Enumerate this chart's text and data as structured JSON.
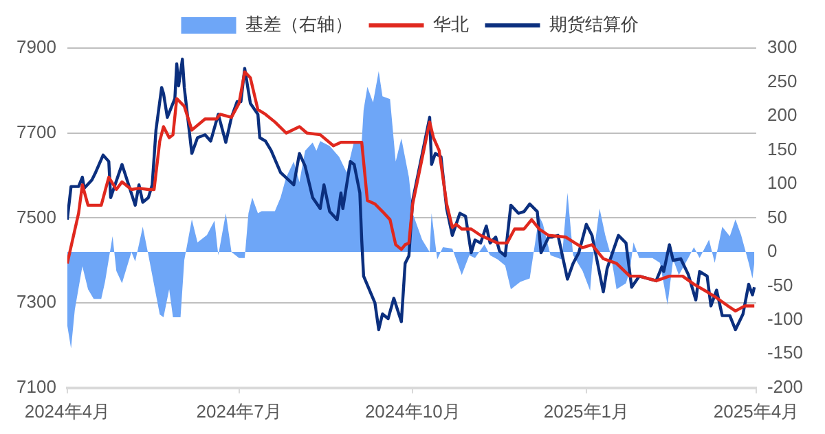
{
  "chart_data": {
    "type": "line",
    "legend": "top",
    "grid": "y",
    "marker": "none",
    "line_style": "solid",
    "xlim": [
      "2024-04-01",
      "2025-04-01"
    ],
    "xticks": [
      {
        "value": "2024-04-01",
        "label": "2024年4月"
      },
      {
        "value": "2024-07-01",
        "label": "2024年7月"
      },
      {
        "value": "2024-10-01",
        "label": "2024年10月"
      },
      {
        "value": "2025-01-01",
        "label": "2025年1月"
      },
      {
        "value": "2025-04-01",
        "label": "2025年4月"
      }
    ],
    "ylim": [
      7100,
      7900
    ],
    "yticks": [
      7100,
      7300,
      7500,
      7700,
      7900
    ],
    "y2lim": [
      -200,
      300
    ],
    "y2ticks": [
      -200,
      -150,
      -100,
      -50,
      0,
      50,
      100,
      150,
      200,
      250,
      300
    ],
    "series": [
      {
        "name": "基差（右轴）",
        "type": "area",
        "axis": "y2",
        "color": "#6ea6f7",
        "x": [
          "2024-04-01",
          "2024-04-03",
          "2024-04-05",
          "2024-04-09",
          "2024-04-12",
          "2024-04-15",
          "2024-04-19",
          "2024-04-21",
          "2024-04-25",
          "2024-04-27",
          "2024-04-30",
          "2024-05-05",
          "2024-05-07",
          "2024-05-11",
          "2024-05-14",
          "2024-05-20",
          "2024-05-22",
          "2024-05-25",
          "2024-05-27",
          "2024-05-31",
          "2024-06-02",
          "2024-06-06",
          "2024-06-09",
          "2024-06-14",
          "2024-06-18",
          "2024-06-20",
          "2024-06-24",
          "2024-06-27",
          "2024-07-01",
          "2024-07-04",
          "2024-07-06",
          "2024-07-08",
          "2024-07-11",
          "2024-07-13",
          "2024-07-20",
          "2024-07-23",
          "2024-07-26",
          "2024-07-30",
          "2024-08-02",
          "2024-08-05",
          "2024-08-09",
          "2024-08-11",
          "2024-08-13",
          "2024-08-18",
          "2024-08-23",
          "2024-08-27",
          "2024-08-31",
          "2024-09-04",
          "2024-09-05",
          "2024-09-07",
          "2024-09-10",
          "2024-09-13",
          "2024-09-15",
          "2024-09-19",
          "2024-09-22",
          "2024-09-25",
          "2024-09-29",
          "2024-10-01",
          "2024-10-06",
          "2024-10-10",
          "2024-10-11",
          "2024-10-14",
          "2024-10-17",
          "2024-10-22",
          "2024-10-27",
          "2024-10-31",
          "2024-11-03",
          "2024-11-08",
          "2024-11-11",
          "2024-11-15",
          "2024-11-19",
          "2024-11-22",
          "2024-11-27",
          "2024-12-02",
          "2024-12-07",
          "2024-12-09",
          "2024-12-13",
          "2024-12-19",
          "2024-12-22",
          "2024-12-25",
          "2024-12-30",
          "2025-01-03",
          "2025-01-04",
          "2025-01-08",
          "2025-01-11",
          "2025-01-14",
          "2025-01-17",
          "2025-01-22",
          "2025-01-24",
          "2025-01-26",
          "2025-01-29",
          "2025-02-05",
          "2025-02-09",
          "2025-02-13",
          "2025-02-16",
          "2025-02-19",
          "2025-02-24",
          "2025-02-27",
          "2025-03-02",
          "2025-03-07",
          "2025-03-10",
          "2025-03-14",
          "2025-03-18",
          "2025-03-21",
          "2025-03-24",
          "2025-03-28",
          "2025-03-30",
          "2025-03-31"
        ],
        "values": [
          -108,
          -142,
          -85,
          -21,
          -55,
          -69,
          -69,
          -44,
          23,
          -28,
          -46,
          0,
          -14,
          37,
          -5,
          -92,
          -96,
          -55,
          -96,
          -96,
          -12,
          48,
          14,
          25,
          46,
          -5,
          57,
          0,
          -9,
          -9,
          57,
          80,
          57,
          60,
          60,
          80,
          110,
          133,
          103,
          149,
          161,
          149,
          163,
          156,
          140,
          117,
          163,
          163,
          209,
          243,
          220,
          266,
          229,
          225,
          133,
          167,
          110,
          57,
          18,
          0,
          57,
          -11,
          7,
          5,
          -34,
          -5,
          -9,
          11,
          -5,
          -11,
          -20,
          -55,
          -44,
          -39,
          53,
          41,
          -5,
          -11,
          87,
          -5,
          -28,
          -57,
          -21,
          64,
          25,
          -5,
          -55,
          -46,
          -28,
          14,
          -9,
          -9,
          -16,
          -78,
          -11,
          -34,
          -9,
          7,
          -9,
          18,
          -16,
          37,
          23,
          48,
          25,
          -16,
          -39,
          -16
        ]
      },
      {
        "name": "华北",
        "type": "line",
        "color": "#e0281e",
        "x": [
          "2024-04-01",
          "2024-04-07",
          "2024-04-09",
          "2024-04-12",
          "2024-04-19",
          "2024-04-23",
          "2024-04-27",
          "2024-04-30",
          "2024-05-05",
          "2024-05-09",
          "2024-05-14",
          "2024-05-17",
          "2024-05-20",
          "2024-05-22",
          "2024-05-25",
          "2024-05-27",
          "2024-05-29",
          "2024-06-02",
          "2024-06-06",
          "2024-06-13",
          "2024-06-19",
          "2024-06-21",
          "2024-06-27",
          "2024-07-01",
          "2024-07-04",
          "2024-07-07",
          "2024-07-11",
          "2024-07-15",
          "2024-07-20",
          "2024-07-26",
          "2024-08-02",
          "2024-08-06",
          "2024-08-13",
          "2024-08-20",
          "2024-08-24",
          "2024-09-04",
          "2024-09-07",
          "2024-09-11",
          "2024-09-15",
          "2024-09-19",
          "2024-09-22",
          "2024-09-25",
          "2024-09-27",
          "2024-09-29",
          "2024-10-01",
          "2024-10-10",
          "2024-10-12",
          "2024-10-15",
          "2024-10-19",
          "2024-10-22",
          "2024-10-24",
          "2024-10-27",
          "2024-11-01",
          "2024-11-06",
          "2024-11-15",
          "2024-11-20",
          "2024-11-24",
          "2024-11-29",
          "2024-12-03",
          "2024-12-07",
          "2024-12-12",
          "2024-12-21",
          "2024-12-26",
          "2024-12-30",
          "2025-01-04",
          "2025-01-10",
          "2025-01-17",
          "2025-01-24",
          "2025-01-29",
          "2025-02-07",
          "2025-02-14",
          "2025-02-21",
          "2025-02-27",
          "2025-03-06",
          "2025-03-10",
          "2025-03-17",
          "2025-03-21",
          "2025-03-26",
          "2025-03-31"
        ],
        "values": [
          7393,
          7511,
          7578,
          7530,
          7530,
          7596,
          7567,
          7585,
          7567,
          7570,
          7567,
          7567,
          7681,
          7715,
          7689,
          7696,
          7781,
          7763,
          7707,
          7733,
          7733,
          7744,
          7737,
          7770,
          7844,
          7830,
          7755,
          7744,
          7726,
          7700,
          7715,
          7700,
          7696,
          7670,
          7678,
          7678,
          7541,
          7533,
          7515,
          7496,
          7437,
          7426,
          7437,
          7441,
          7533,
          7726,
          7689,
          7659,
          7533,
          7478,
          7485,
          7474,
          7474,
          7459,
          7441,
          7441,
          7474,
          7474,
          7496,
          7474,
          7459,
          7455,
          7441,
          7430,
          7437,
          7404,
          7393,
          7363,
          7363,
          7352,
          7363,
          7363,
          7344,
          7326,
          7315,
          7293,
          7281,
          7293,
          7293
        ]
      },
      {
        "name": "期货结算价",
        "type": "line",
        "color": "#0b2f7e",
        "x": [
          "2024-04-01",
          "2024-04-03",
          "2024-04-07",
          "2024-04-09",
          "2024-04-10",
          "2024-04-14",
          "2024-04-16",
          "2024-04-20",
          "2024-04-23",
          "2024-04-24",
          "2024-04-30",
          "2024-05-03",
          "2024-05-07",
          "2024-05-09",
          "2024-05-11",
          "2024-05-14",
          "2024-05-16",
          "2024-05-18",
          "2024-05-21",
          "2024-05-22",
          "2024-05-24",
          "2024-05-28",
          "2024-05-29",
          "2024-05-30",
          "2024-06-01",
          "2024-06-02",
          "2024-06-06",
          "2024-06-09",
          "2024-06-13",
          "2024-06-16",
          "2024-06-20",
          "2024-06-24",
          "2024-06-27",
          "2024-06-30",
          "2024-07-02",
          "2024-07-04",
          "2024-07-07",
          "2024-07-11",
          "2024-07-12",
          "2024-07-15",
          "2024-07-18",
          "2024-07-23",
          "2024-07-30",
          "2024-08-02",
          "2024-08-05",
          "2024-08-09",
          "2024-08-13",
          "2024-08-15",
          "2024-08-18",
          "2024-08-22",
          "2024-08-24",
          "2024-08-25",
          "2024-08-29",
          "2024-08-31",
          "2024-09-03",
          "2024-09-04",
          "2024-09-05",
          "2024-09-11",
          "2024-09-13",
          "2024-09-15",
          "2024-09-18",
          "2024-09-21",
          "2024-09-25",
          "2024-09-27",
          "2024-09-29",
          "2024-10-01",
          "2024-10-10",
          "2024-10-11",
          "2024-10-13",
          "2024-10-16",
          "2024-10-19",
          "2024-10-22",
          "2024-10-26",
          "2024-10-29",
          "2024-11-01",
          "2024-11-03",
          "2024-11-06",
          "2024-11-09",
          "2024-11-11",
          "2024-11-14",
          "2024-11-16",
          "2024-11-19",
          "2024-11-22",
          "2024-11-26",
          "2024-11-29",
          "2024-12-02",
          "2024-12-06",
          "2024-12-08",
          "2024-12-12",
          "2024-12-14",
          "2024-12-17",
          "2024-12-22",
          "2024-12-25",
          "2024-12-28",
          "2025-01-01",
          "2025-01-04",
          "2025-01-10",
          "2025-01-12",
          "2025-01-18",
          "2025-01-22",
          "2025-01-25",
          "2025-01-29",
          "2025-02-07",
          "2025-02-10",
          "2025-02-11",
          "2025-02-14",
          "2025-02-16",
          "2025-02-20",
          "2025-02-24",
          "2025-02-28",
          "2025-03-02",
          "2025-03-06",
          "2025-03-08",
          "2025-03-11",
          "2025-03-14",
          "2025-03-18",
          "2025-03-21",
          "2025-03-25",
          "2025-03-28",
          "2025-03-30",
          "2025-03-31"
        ],
        "values": [
          7496,
          7574,
          7574,
          7596,
          7570,
          7589,
          7607,
          7648,
          7633,
          7548,
          7626,
          7585,
          7530,
          7578,
          7537,
          7548,
          7578,
          7707,
          7807,
          7793,
          7737,
          7781,
          7863,
          7811,
          7874,
          7807,
          7652,
          7689,
          7696,
          7681,
          7744,
          7678,
          7737,
          7774,
          7774,
          7852,
          7770,
          7744,
          7689,
          7681,
          7659,
          7607,
          7578,
          7652,
          7622,
          7548,
          7522,
          7578,
          7515,
          7496,
          7559,
          7522,
          7633,
          7626,
          7559,
          7448,
          7363,
          7300,
          7237,
          7274,
          7263,
          7311,
          7256,
          7393,
          7411,
          7541,
          7737,
          7626,
          7652,
          7644,
          7522,
          7459,
          7511,
          7504,
          7418,
          7448,
          7441,
          7481,
          7441,
          7455,
          7422,
          7411,
          7530,
          7511,
          7515,
          7533,
          7515,
          7418,
          7455,
          7455,
          7459,
          7356,
          7393,
          7418,
          7485,
          7459,
          7326,
          7381,
          7459,
          7441,
          7337,
          7363,
          7352,
          7385,
          7374,
          7437,
          7400,
          7404,
          7367,
          7307,
          7374,
          7363,
          7293,
          7330,
          7270,
          7270,
          7237,
          7274,
          7344,
          7319,
          7337
        ]
      }
    ]
  }
}
